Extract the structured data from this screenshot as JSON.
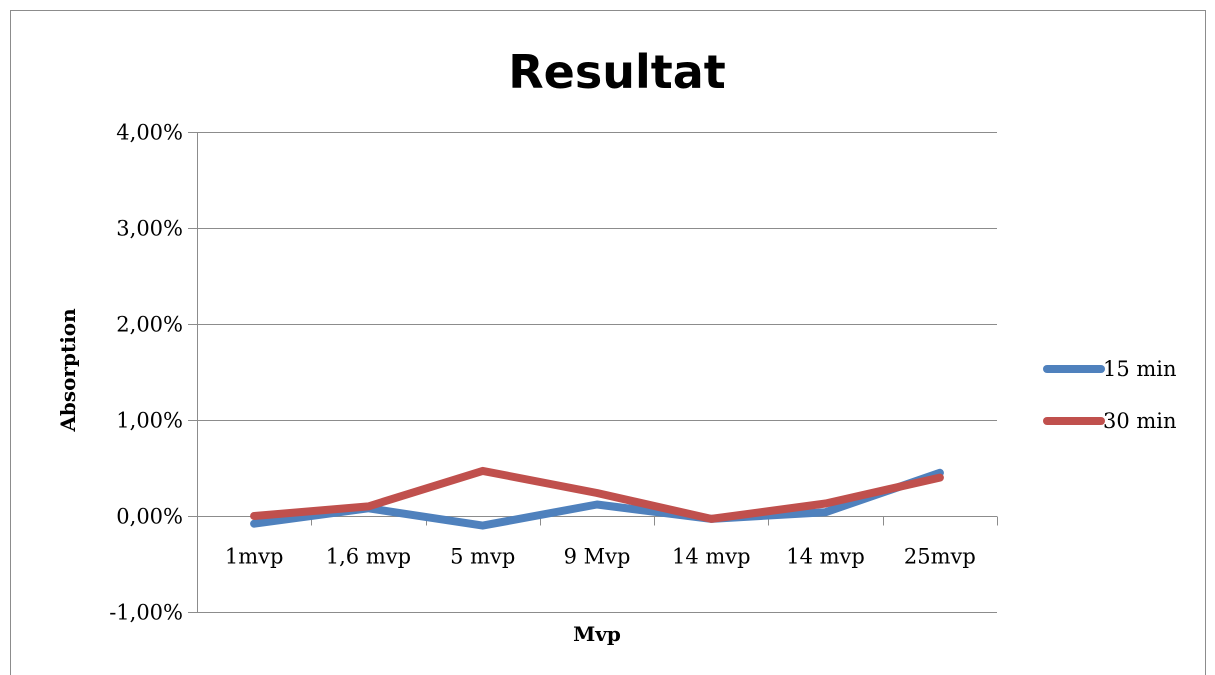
{
  "chart_data": {
    "type": "line",
    "title": "Resultat",
    "xlabel": "Mvp",
    "ylabel": "Absorption",
    "categories": [
      "1mvp",
      "1,6 mvp",
      "5 mvp",
      "9 Mvp",
      "14 mvp",
      "14 mvp",
      "25mvp"
    ],
    "ylim": [
      -0.01,
      0.04
    ],
    "y_ticks": [
      -0.01,
      0.0,
      0.01,
      0.02,
      0.03,
      0.04
    ],
    "y_tick_labels": [
      "-1,00%",
      "0,00%",
      "1,00%",
      "2,00%",
      "3,00%",
      "4,00%"
    ],
    "grid": true,
    "legend_position": "right",
    "series": [
      {
        "name": "15 min",
        "color": "#4F81BD",
        "values": [
          -0.0008,
          0.0008,
          -0.001,
          0.0012,
          -0.0003,
          0.0004,
          0.0045
        ]
      },
      {
        "name": "30 min",
        "color": "#C0504D",
        "values": [
          0.0,
          0.001,
          0.0047,
          0.0024,
          -0.0003,
          0.0013,
          0.004
        ]
      }
    ]
  }
}
